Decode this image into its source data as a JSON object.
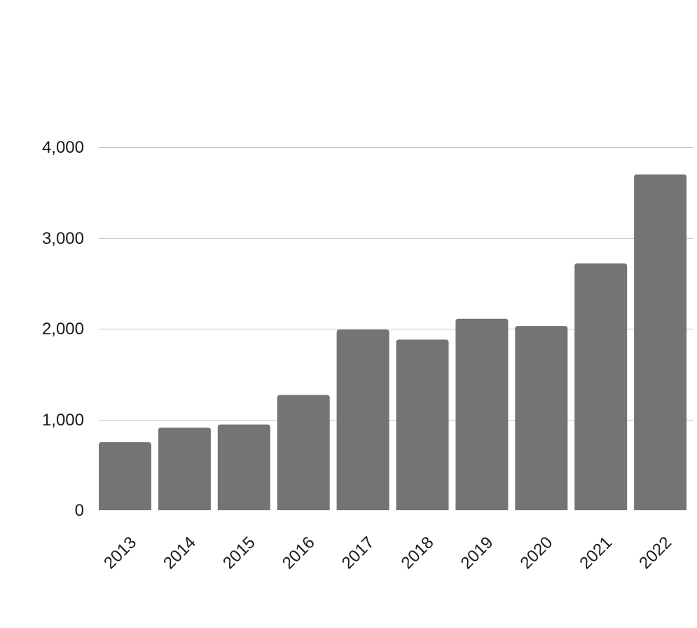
{
  "chart_data": {
    "type": "bar",
    "title": "",
    "xlabel": "",
    "ylabel": "",
    "categories": [
      "2013",
      "2014",
      "2015",
      "2016",
      "2017",
      "2018",
      "2019",
      "2020",
      "2021",
      "2022"
    ],
    "values": [
      750,
      910,
      945,
      1270,
      1990,
      1880,
      2110,
      2030,
      2720,
      3700
    ],
    "ylim": [
      0,
      4000
    ],
    "yticks": [
      0,
      1000,
      2000,
      3000,
      4000
    ],
    "ytick_labels": [
      "0",
      "1,000",
      "2,000",
      "3,000",
      "4,000"
    ],
    "grid": true,
    "legend": "none",
    "bar_color": "#737473",
    "grid_color": "#c6c6c6",
    "text_color": "#1a1a1a"
  }
}
